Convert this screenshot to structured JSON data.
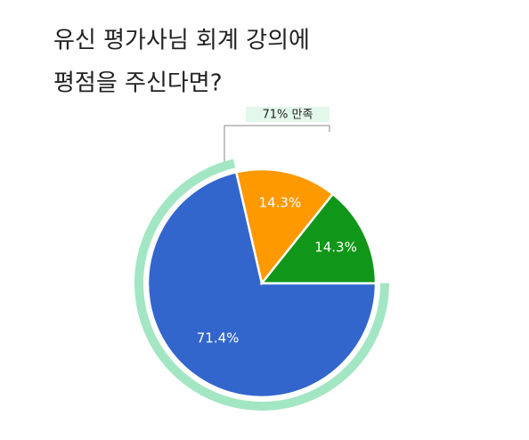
{
  "chart_data": {
    "type": "pie",
    "title": [
      "유신 평가사님 회계 강의에",
      "평점을 주신다면?"
    ],
    "values": [
      71.4,
      14.3,
      14.3
    ],
    "value_labels": [
      "71.4%",
      "14.3%",
      "14.3%"
    ],
    "colors": [
      "#3366cc",
      "#ff9900",
      "#109618"
    ],
    "annotation": "71% 만족",
    "annotation_color": "#a3e6c4"
  }
}
